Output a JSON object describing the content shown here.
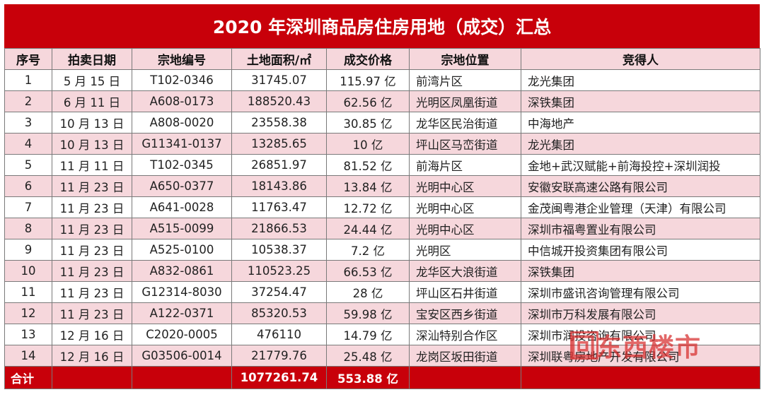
{
  "title": "2020 年深圳商品房住房用地（成交）汇总",
  "columns": [
    "序号",
    "拍卖日期",
    "宗地编号",
    "土地面积/㎡",
    "成交价格",
    "宗地位置",
    "竞得人"
  ],
  "rows": [
    [
      "1",
      "5 月 15 日",
      "T102-0346",
      "31745.07",
      "115.97 亿",
      "前湾片区",
      "龙光集团"
    ],
    [
      "2",
      "6 月 11 日",
      "A608-0173",
      "188520.43",
      "62.56 亿",
      "光明区凤凰街道",
      "深铁集团"
    ],
    [
      "3",
      "10 月 13 日",
      "A808-0020",
      "23558.38",
      "30.85 亿",
      "龙华区民治街道",
      "中海地产"
    ],
    [
      "4",
      "10 月 13 日",
      "G11341-0137",
      "13285.65",
      "10 亿",
      "坪山区马峦街道",
      "龙光集团"
    ],
    [
      "5",
      "11 月 11 日",
      "T102-0345",
      "26851.97",
      "81.52 亿",
      "前海片区",
      "金地+武汉赋能+前海投控+深圳润投"
    ],
    [
      "6",
      "11 月 23 日",
      "A650-0377",
      "18143.86",
      "13.84 亿",
      "光明中心区",
      "安徽安联高速公路有限公司"
    ],
    [
      "7",
      "11 月 23 日",
      "A641-0028",
      "11763.47",
      "12.72 亿",
      "光明中心区",
      "金茂闽粤港企业管理（天津）有限公司"
    ],
    [
      "8",
      "11 月 23 日",
      "A515-0099",
      "21866.53",
      "24.44 亿",
      "光明中心区",
      "深圳市福粤置业有限公司"
    ],
    [
      "9",
      "11 月 23 日",
      "A525-0100",
      "10538.37",
      "7.2 亿",
      "光明区",
      "中信城开投资集团有限公司"
    ],
    [
      "10",
      "11 月 23 日",
      "A832-0861",
      "110523.25",
      "66.53 亿",
      "龙华区大浪街道",
      "深铁集团"
    ],
    [
      "11",
      "11 月 23 日",
      "G12314-8030",
      "37254.47",
      "28 亿",
      "坪山区石井街道",
      "深圳市盛讯咨询管理有限公司"
    ],
    [
      "12",
      "11 月 23 日",
      "A122-0371",
      "85320.53",
      "59.98 亿",
      "宝安区西乡街道",
      "深圳市万科发展有限公司"
    ],
    [
      "13",
      "12 月 16 日",
      "C2020-0005",
      "476110",
      "14.79 亿",
      "深汕特别合作区",
      "深圳市润投咨询有限公司"
    ],
    [
      "14",
      "12 月 16 日",
      "G03506-0014",
      "21779.76",
      "25.48 亿",
      "龙岗区坂田街道",
      "深圳联粤房地产开发有限公司"
    ]
  ],
  "total": {
    "label": "合计",
    "area": "1077261.74",
    "price": "553.88 亿"
  },
  "watermark": "回东西楼市"
}
